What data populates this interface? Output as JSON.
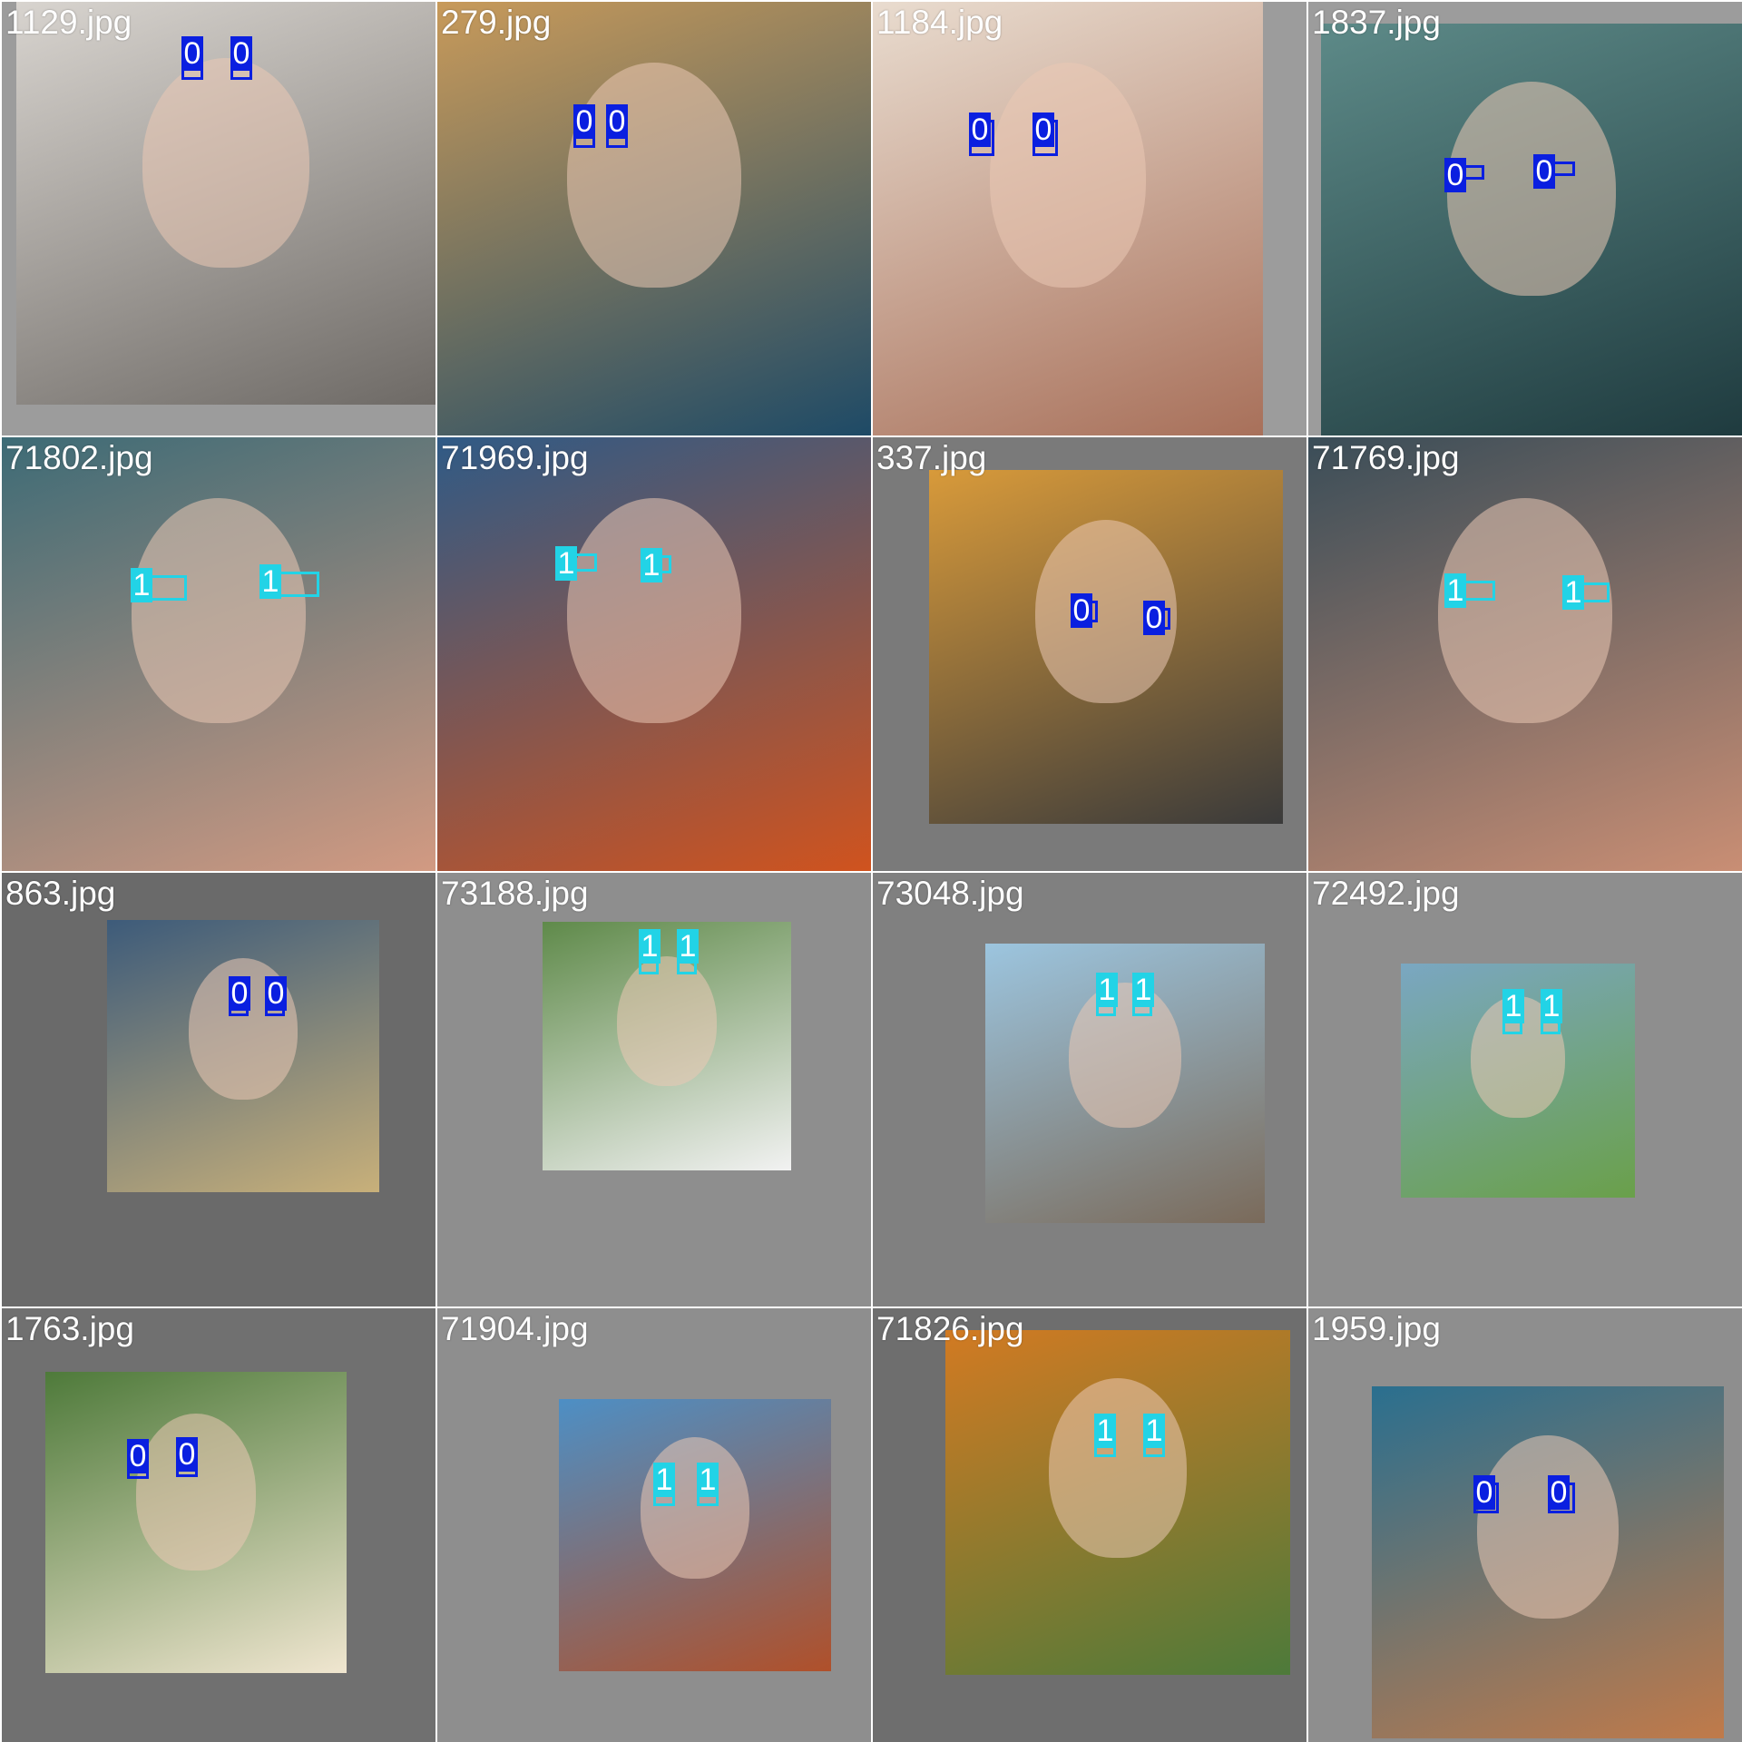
{
  "class_colors": {
    "0": "#0a1fe0",
    "1": "#22d3e6"
  },
  "tiles": [
    {
      "file": "1129.jpg",
      "bg": "#9c9c9c",
      "photo_colors": [
        "#d8d4cf",
        "#6e6a66"
      ],
      "detections": [
        {
          "label": "0",
          "cls": 0
        },
        {
          "label": "0",
          "cls": 0
        }
      ]
    },
    {
      "file": "279.jpg",
      "bg": "#9c9c9c",
      "photo_colors": [
        "#c89a5a",
        "#1e4a66"
      ],
      "detections": [
        {
          "label": "0",
          "cls": 0
        },
        {
          "label": "0",
          "cls": 0
        }
      ]
    },
    {
      "file": "1184.jpg",
      "bg": "#9c9c9c",
      "photo_colors": [
        "#e9dccf",
        "#a8705a"
      ],
      "detections": [
        {
          "label": "0",
          "cls": 0
        },
        {
          "label": "0",
          "cls": 0
        }
      ]
    },
    {
      "file": "1837.jpg",
      "bg": "#9c9c9c",
      "photo_colors": [
        "#5d8a88",
        "#1f3b3f"
      ],
      "detections": [
        {
          "label": "0",
          "cls": 0
        },
        {
          "label": "0",
          "cls": 0
        }
      ]
    },
    {
      "file": "71802.jpg",
      "bg": "#9c9c9c",
      "photo_colors": [
        "#3d6b76",
        "#d29a82"
      ],
      "detections": [
        {
          "label": "1",
          "cls": 1
        },
        {
          "label": "1",
          "cls": 1
        }
      ]
    },
    {
      "file": "71969.jpg",
      "bg": "#9c9c9c",
      "photo_colors": [
        "#2f5a86",
        "#d0531e"
      ],
      "detections": [
        {
          "label": "1",
          "cls": 1
        },
        {
          "label": "1",
          "cls": 1
        }
      ]
    },
    {
      "file": "337.jpg",
      "bg": "#7a7a7a",
      "photo_colors": [
        "#d89a3a",
        "#3a3a3a"
      ],
      "detections": [
        {
          "label": "0",
          "cls": 0
        },
        {
          "label": "0",
          "cls": 0
        }
      ]
    },
    {
      "file": "71769.jpg",
      "bg": "#9c9c9c",
      "photo_colors": [
        "#3a4d58",
        "#c98e74"
      ],
      "detections": [
        {
          "label": "1",
          "cls": 1
        },
        {
          "label": "1",
          "cls": 1
        }
      ]
    },
    {
      "file": "863.jpg",
      "bg": "#6a6a6a",
      "photo_colors": [
        "#3d5b7a",
        "#c8b07a"
      ],
      "detections": [
        {
          "label": "0",
          "cls": 0
        },
        {
          "label": "0",
          "cls": 0
        }
      ]
    },
    {
      "file": "73188.jpg",
      "bg": "#8e8e8e",
      "photo_colors": [
        "#5f8a4a",
        "#f2f2f2"
      ],
      "detections": [
        {
          "label": "1",
          "cls": 1
        },
        {
          "label": "1",
          "cls": 1
        }
      ]
    },
    {
      "file": "73048.jpg",
      "bg": "#808080",
      "photo_colors": [
        "#9cc5df",
        "#7a6a5a"
      ],
      "detections": [
        {
          "label": "1",
          "cls": 1
        },
        {
          "label": "1",
          "cls": 1
        }
      ]
    },
    {
      "file": "72492.jpg",
      "bg": "#8e8e8e",
      "photo_colors": [
        "#7aa7c2",
        "#6aa04a"
      ],
      "detections": [
        {
          "label": "1",
          "cls": 1
        },
        {
          "label": "1",
          "cls": 1
        }
      ]
    },
    {
      "file": "1763.jpg",
      "bg": "#707070",
      "photo_colors": [
        "#4e7a3a",
        "#f0e6d0"
      ],
      "detections": [
        {
          "label": "0",
          "cls": 0
        },
        {
          "label": "0",
          "cls": 0
        }
      ]
    },
    {
      "file": "71904.jpg",
      "bg": "#8e8e8e",
      "photo_colors": [
        "#4d8fc5",
        "#b0502a"
      ],
      "detections": [
        {
          "label": "1",
          "cls": 1
        },
        {
          "label": "1",
          "cls": 1
        }
      ]
    },
    {
      "file": "71826.jpg",
      "bg": "#6e6e6e",
      "photo_colors": [
        "#d27a22",
        "#4d7a3a"
      ],
      "detections": [
        {
          "label": "1",
          "cls": 1
        },
        {
          "label": "1",
          "cls": 1
        }
      ]
    },
    {
      "file": "1959.jpg",
      "bg": "#8e8e8e",
      "photo_colors": [
        "#2a6f8f",
        "#c07a4a"
      ],
      "detections": [
        {
          "label": "0",
          "cls": 0
        },
        {
          "label": "0",
          "cls": 0
        }
      ]
    }
  ]
}
